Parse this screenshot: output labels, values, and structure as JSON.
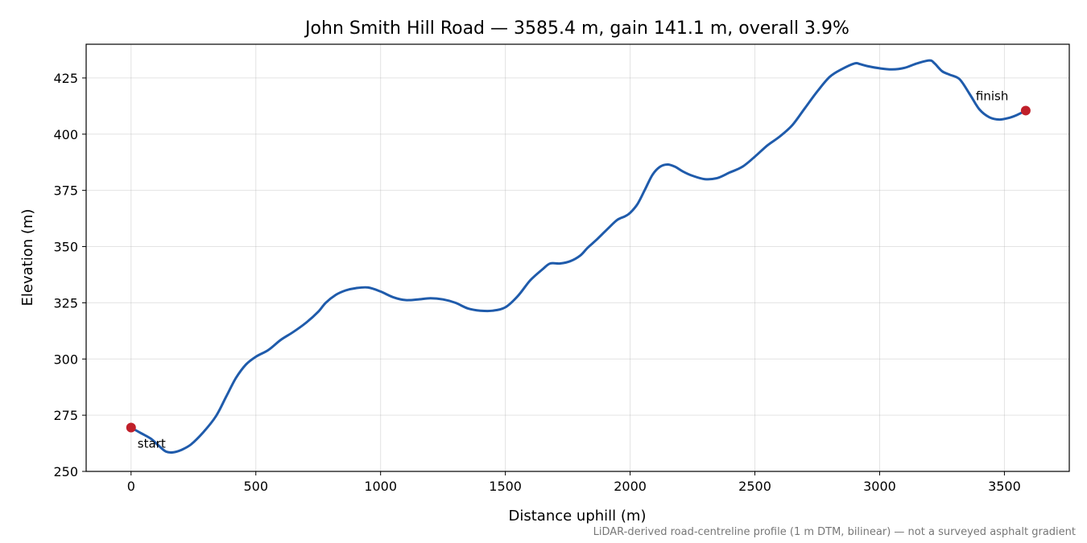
{
  "chart_data": {
    "type": "line",
    "title": "John Smith Hill Road — 3585.4 m, gain 141.1 m, overall 3.9%",
    "xlabel": "Distance uphill (m)",
    "ylabel": "Elevation (m)",
    "xlim": [
      -180,
      3760
    ],
    "ylim": [
      250,
      440
    ],
    "xticks": [
      0,
      500,
      1000,
      1500,
      2000,
      2500,
      3000,
      3500
    ],
    "yticks": [
      250,
      275,
      300,
      325,
      350,
      375,
      400,
      425
    ],
    "grid": true,
    "line_color": "#1f5bab",
    "marker_color": "#c0202a",
    "series": [
      {
        "x": [
          0,
          40,
          80,
          110,
          140,
          170,
          200,
          240,
          290,
          340,
          380,
          420,
          460,
          500,
          550,
          600,
          650,
          700,
          750,
          780,
          820,
          860,
          900,
          950,
          1000,
          1050,
          1100,
          1150,
          1200,
          1250,
          1300,
          1350,
          1400,
          1450,
          1500,
          1550,
          1600,
          1650,
          1680,
          1720,
          1760,
          1800,
          1830,
          1870,
          1920,
          1950,
          1980,
          2000,
          2030,
          2060,
          2090,
          2120,
          2150,
          2180,
          2210,
          2250,
          2300,
          2350,
          2400,
          2450,
          2500,
          2550,
          2600,
          2650,
          2700,
          2750,
          2800,
          2850,
          2900,
          2920,
          2950,
          3000,
          3050,
          3100,
          3150,
          3200,
          3220,
          3250,
          3280,
          3320,
          3360,
          3400,
          3440,
          3480,
          3520,
          3550,
          3585.4
        ],
        "y": [
          269.5,
          267,
          264.5,
          261.5,
          258.8,
          258.5,
          259.5,
          262,
          267.5,
          274.5,
          283,
          291.5,
          297.5,
          301,
          304,
          308.5,
          312,
          316,
          321,
          325,
          328.5,
          330.5,
          331.5,
          331.8,
          330,
          327.5,
          326.2,
          326.5,
          327,
          326.5,
          325,
          322.5,
          321.5,
          321.5,
          323,
          328,
          335,
          340,
          342.5,
          342.5,
          343.5,
          346,
          349.5,
          353.5,
          359,
          362,
          363.5,
          365,
          369,
          375.5,
          382,
          385.5,
          386.5,
          385.5,
          383.5,
          381.5,
          380,
          380.5,
          383,
          385.5,
          390,
          395,
          399,
          404,
          411.5,
          419,
          425.5,
          429,
          431.5,
          431.2,
          430.3,
          429.3,
          428.8,
          429.5,
          431.5,
          432.8,
          431.5,
          428,
          426.5,
          424.5,
          418,
          411,
          407.5,
          406.5,
          407.3,
          408.5,
          410.5
        ]
      }
    ],
    "annotations": [
      {
        "text": "start",
        "x": 0,
        "y": 269.5
      },
      {
        "text": "finish",
        "x": 3585.4,
        "y": 410.5
      }
    ],
    "footnote": "LiDAR-derived road-centreline profile (1 m DTM, bilinear) — not a surveyed asphalt gradient"
  }
}
